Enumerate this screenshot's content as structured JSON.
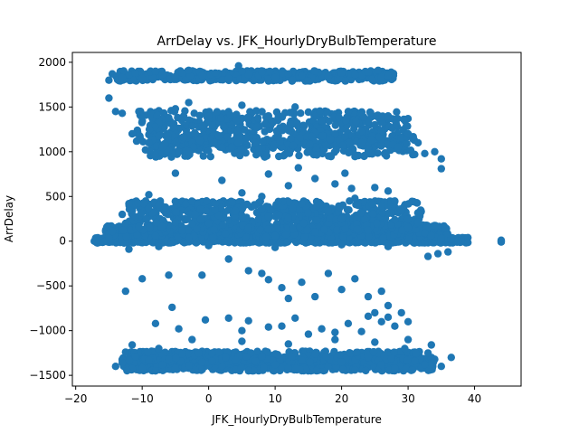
{
  "chart_data": {
    "type": "scatter",
    "title": "ArrDelay vs. JFK_HourlyDryBulbTemperature",
    "xlabel": "JFK_HourlyDryBulbTemperature",
    "ylabel": "ArrDelay",
    "xlim": [
      -20.5,
      47.0
    ],
    "ylim": [
      -1620,
      2110
    ],
    "xticks": [
      -20,
      -10,
      0,
      10,
      20,
      30,
      40
    ],
    "yticks": [
      -1500,
      -1000,
      -500,
      0,
      500,
      1000,
      1500,
      2000
    ],
    "grid": false,
    "color": "#1f77b4",
    "series": [
      {
        "points": [
          [
            -17.2,
            0
          ],
          [
            -16.5,
            15
          ],
          [
            -15.8,
            -10
          ],
          [
            -15.0,
            40
          ],
          [
            -14.5,
            110
          ],
          [
            -13.0,
            300
          ],
          [
            -12.5,
            200
          ],
          [
            -12.0,
            420
          ],
          [
            -11.0,
            270
          ],
          [
            -10.5,
            160
          ],
          [
            -9.0,
            520
          ],
          [
            -8.0,
            60
          ],
          [
            -6.5,
            380
          ],
          [
            -5.0,
            210
          ],
          [
            -4.0,
            120
          ],
          [
            -3.0,
            40
          ],
          [
            -2.0,
            300
          ],
          [
            0.0,
            200
          ],
          [
            1.0,
            420
          ],
          [
            2.5,
            80
          ],
          [
            4.0,
            340
          ],
          [
            6.0,
            150
          ],
          [
            8.0,
            500
          ],
          [
            10.0,
            60
          ],
          [
            12.0,
            260
          ],
          [
            14.0,
            420
          ],
          [
            16.0,
            100
          ],
          [
            18.0,
            330
          ],
          [
            20.0,
            250
          ],
          [
            22.0,
            480
          ],
          [
            24.0,
            120
          ],
          [
            26.0,
            380
          ],
          [
            28.0,
            240
          ],
          [
            30.0,
            150
          ],
          [
            31.5,
            210
          ],
          [
            32.5,
            90
          ],
          [
            33.5,
            60
          ],
          [
            35.0,
            30
          ],
          [
            36.5,
            20
          ],
          [
            38.0,
            10
          ],
          [
            39.0,
            -15
          ],
          [
            37.5,
            5
          ],
          [
            44.0,
            0
          ],
          [
            44.0,
            10
          ],
          [
            44.0,
            -10
          ],
          [
            33.0,
            -170
          ],
          [
            34.5,
            -140
          ],
          [
            36.0,
            -120
          ],
          [
            31.0,
            -20
          ],
          [
            -12.0,
            -90
          ],
          [
            -7.5,
            -60
          ],
          [
            0.0,
            -50
          ],
          [
            10.0,
            -70
          ],
          [
            20.0,
            -40
          ],
          [
            27.0,
            -60
          ],
          [
            -15.0,
            1800
          ],
          [
            -14.5,
            1870
          ],
          [
            -13.0,
            1830
          ],
          [
            -11.0,
            1880
          ],
          [
            -10.0,
            1820
          ],
          [
            -8.0,
            1900
          ],
          [
            -7.0,
            1860
          ],
          [
            -5.0,
            1840
          ],
          [
            -3.0,
            1910
          ],
          [
            -1.0,
            1850
          ],
          [
            1.0,
            1880
          ],
          [
            3.0,
            1820
          ],
          [
            4.5,
            1960
          ],
          [
            6.0,
            1860
          ],
          [
            8.0,
            1890
          ],
          [
            10.0,
            1830
          ],
          [
            12.0,
            1870
          ],
          [
            14.0,
            1850
          ],
          [
            16.0,
            1900
          ],
          [
            18.0,
            1840
          ],
          [
            20.0,
            1880
          ],
          [
            22.0,
            1860
          ],
          [
            24.0,
            1890
          ],
          [
            26.0,
            1830
          ],
          [
            27.0,
            1850
          ],
          [
            25.5,
            1910
          ],
          [
            5.0,
            1900
          ],
          [
            -14.0,
            1450
          ],
          [
            -13.0,
            1430
          ],
          [
            -11.5,
            1200
          ],
          [
            -10.5,
            1450
          ],
          [
            -9.5,
            1020
          ],
          [
            -8.5,
            1130
          ],
          [
            -8.0,
            960
          ],
          [
            -7.0,
            1050
          ],
          [
            -6.0,
            1380
          ],
          [
            -5.0,
            1480
          ],
          [
            -4.5,
            1000
          ],
          [
            -3.0,
            1550
          ],
          [
            -2.0,
            1200
          ],
          [
            0.0,
            1400
          ],
          [
            2.0,
            1050
          ],
          [
            3.5,
            1300
          ],
          [
            5.0,
            1520
          ],
          [
            7.0,
            1100
          ],
          [
            9.0,
            1400
          ],
          [
            11.0,
            1250
          ],
          [
            13.0,
            1500
          ],
          [
            15.0,
            1000
          ],
          [
            17.0,
            1350
          ],
          [
            19.0,
            1200
          ],
          [
            21.0,
            1450
          ],
          [
            23.0,
            1100
          ],
          [
            25.0,
            1300
          ],
          [
            27.0,
            1400
          ],
          [
            28.5,
            1050
          ],
          [
            30.0,
            1200
          ],
          [
            31.5,
            1100
          ],
          [
            32.5,
            980
          ],
          [
            34.0,
            1000
          ],
          [
            35.0,
            920
          ],
          [
            35.0,
            810
          ],
          [
            31.0,
            970
          ],
          [
            -15.0,
            1600
          ],
          [
            -9.0,
            1100
          ],
          [
            24.0,
            1010
          ],
          [
            -5.0,
            760
          ],
          [
            2.0,
            680
          ],
          [
            5.0,
            540
          ],
          [
            9.0,
            750
          ],
          [
            12.0,
            620
          ],
          [
            13.5,
            820
          ],
          [
            16.0,
            700
          ],
          [
            19.0,
            640
          ],
          [
            20.5,
            760
          ],
          [
            21.5,
            590
          ],
          [
            25.0,
            600
          ],
          [
            27.0,
            560
          ],
          [
            -12.5,
            -560
          ],
          [
            -10.0,
            -420
          ],
          [
            -6.0,
            -380
          ],
          [
            -5.5,
            -740
          ],
          [
            -1.0,
            -380
          ],
          [
            3.0,
            -200
          ],
          [
            6.0,
            -330
          ],
          [
            8.0,
            -360
          ],
          [
            9.0,
            -430
          ],
          [
            11.0,
            -520
          ],
          [
            12.0,
            -640
          ],
          [
            14.0,
            -460
          ],
          [
            16.0,
            -620
          ],
          [
            18.0,
            -360
          ],
          [
            20.0,
            -540
          ],
          [
            22.0,
            -420
          ],
          [
            24.0,
            -620
          ],
          [
            26.0,
            -560
          ],
          [
            27.0,
            -720
          ],
          [
            25.0,
            -800
          ],
          [
            26.0,
            -900
          ],
          [
            27.0,
            -850
          ],
          [
            28.0,
            -950
          ],
          [
            29.0,
            -800
          ],
          [
            30.0,
            -900
          ],
          [
            -8.0,
            -920
          ],
          [
            -4.5,
            -980
          ],
          [
            -0.5,
            -880
          ],
          [
            3.0,
            -860
          ],
          [
            5.0,
            -1000
          ],
          [
            6.0,
            -890
          ],
          [
            9.0,
            -960
          ],
          [
            11.0,
            -950
          ],
          [
            13.0,
            -860
          ],
          [
            15.0,
            -1040
          ],
          [
            17.0,
            -980
          ],
          [
            19.0,
            -1020
          ],
          [
            21.0,
            -920
          ],
          [
            23.0,
            -1010
          ],
          [
            24.0,
            -840
          ],
          [
            -14.0,
            -1400
          ],
          [
            -13.0,
            -1360
          ],
          [
            -12.5,
            -1240
          ],
          [
            -11.0,
            -1290
          ],
          [
            -10.0,
            -1420
          ],
          [
            -9.0,
            -1330
          ],
          [
            -8.0,
            -1450
          ],
          [
            -7.0,
            -1380
          ],
          [
            -6.0,
            -1320
          ],
          [
            -5.0,
            -1420
          ],
          [
            -4.0,
            -1260
          ],
          [
            -3.0,
            -1390
          ],
          [
            -2.0,
            -1440
          ],
          [
            -1.0,
            -1350
          ],
          [
            0.5,
            -1250
          ],
          [
            2.0,
            -1400
          ],
          [
            4.0,
            -1330
          ],
          [
            6.0,
            -1450
          ],
          [
            8.0,
            -1290
          ],
          [
            10.0,
            -1380
          ],
          [
            12.0,
            -1420
          ],
          [
            14.0,
            -1330
          ],
          [
            16.0,
            -1260
          ],
          [
            18.0,
            -1400
          ],
          [
            20.0,
            -1350
          ],
          [
            22.0,
            -1440
          ],
          [
            24.0,
            -1300
          ],
          [
            26.0,
            -1380
          ],
          [
            28.0,
            -1420
          ],
          [
            29.5,
            -1200
          ],
          [
            31.0,
            -1340
          ],
          [
            32.5,
            -1380
          ],
          [
            33.0,
            -1250
          ],
          [
            34.0,
            -1320
          ],
          [
            35.0,
            -1400
          ],
          [
            36.5,
            -1300
          ],
          [
            -11.5,
            -1160
          ],
          [
            -7.5,
            -1200
          ],
          [
            -2.5,
            -1100
          ],
          [
            5.0,
            -1120
          ],
          [
            12.0,
            -1150
          ],
          [
            19.0,
            -1100
          ],
          [
            25.0,
            -1130
          ],
          [
            30.0,
            -1100
          ],
          [
            33.5,
            -1160
          ]
        ],
        "bands": [
          {
            "x": [
              -17.0,
              39.0
            ],
            "y": [
              -20,
              40
            ],
            "count": 700
          },
          {
            "x": [
              -15.5,
              36.0
            ],
            "y": [
              40,
              180
            ],
            "count": 900
          },
          {
            "x": [
              -12.0,
              32.0
            ],
            "y": [
              120,
              450
            ],
            "count": 650
          },
          {
            "x": [
              -14.0,
              28.0
            ],
            "y": [
              1790,
              1905
            ],
            "count": 380
          },
          {
            "x": [
              -11.0,
              30.0
            ],
            "y": [
              1060,
              1460
            ],
            "count": 500
          },
          {
            "x": [
              -9.0,
              31.0
            ],
            "y": [
              940,
              1180
            ],
            "count": 300
          },
          {
            "x": [
              -13.0,
              34.0
            ],
            "y": [
              -1450,
              -1300
            ],
            "count": 700
          },
          {
            "x": [
              -12.0,
              32.0
            ],
            "y": [
              -1350,
              -1230
            ],
            "count": 350
          }
        ]
      }
    ]
  }
}
